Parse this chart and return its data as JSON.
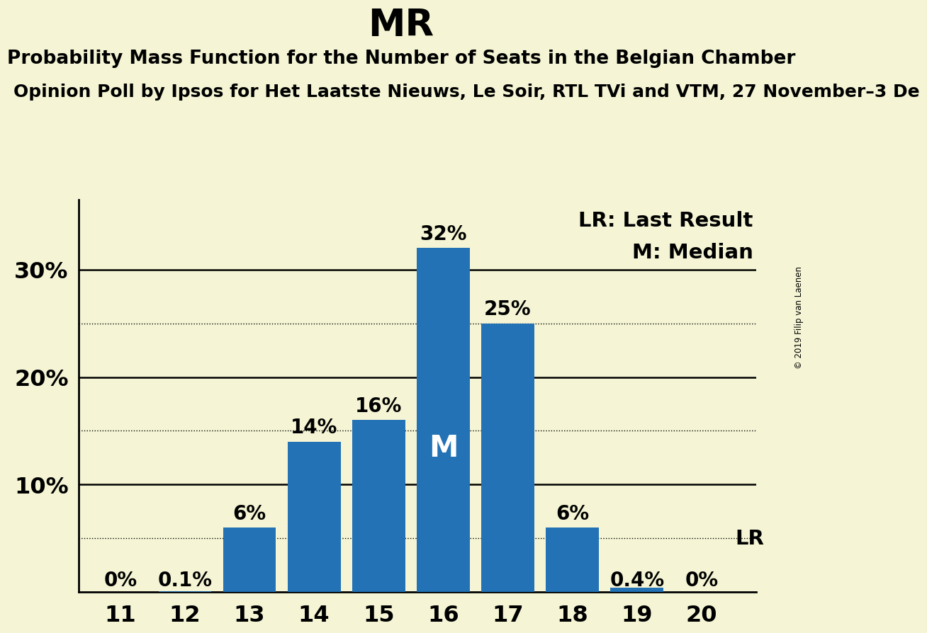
{
  "title": "MR",
  "subtitle": "Probability Mass Function for the Number of Seats in the Belgian Chamber",
  "source_line": "Opinion Poll by Ipsos for Het Laatste Nieuws, Le Soir, RTL TVi and VTM, 27 November–3 De",
  "copyright": "© 2019 Filip van Laenen",
  "seats": [
    11,
    12,
    13,
    14,
    15,
    16,
    17,
    18,
    19,
    20
  ],
  "probabilities": [
    0.0,
    0.001,
    0.06,
    0.14,
    0.16,
    0.32,
    0.25,
    0.06,
    0.004,
    0.0
  ],
  "labels": [
    "0%",
    "0.1%",
    "6%",
    "14%",
    "16%",
    "32%",
    "25%",
    "6%",
    "0.4%",
    "0%"
  ],
  "bar_color": "#2272b5",
  "background_color": "#f5f5d5",
  "median_seat": 16,
  "last_result_seat": 20,
  "yticks": [
    0.1,
    0.2,
    0.3
  ],
  "ytick_labels": [
    "10%",
    "20%",
    "30%"
  ],
  "solid_lines": [
    0.1,
    0.2,
    0.3
  ],
  "dotted_lines": [
    0.05,
    0.15,
    0.25
  ],
  "title_fontsize": 38,
  "subtitle_fontsize": 19,
  "source_fontsize": 18,
  "bar_label_fontsize": 20,
  "axis_label_fontsize": 23,
  "legend_fontsize": 21,
  "median_label_fontsize": 30,
  "bar_width": 0.82
}
